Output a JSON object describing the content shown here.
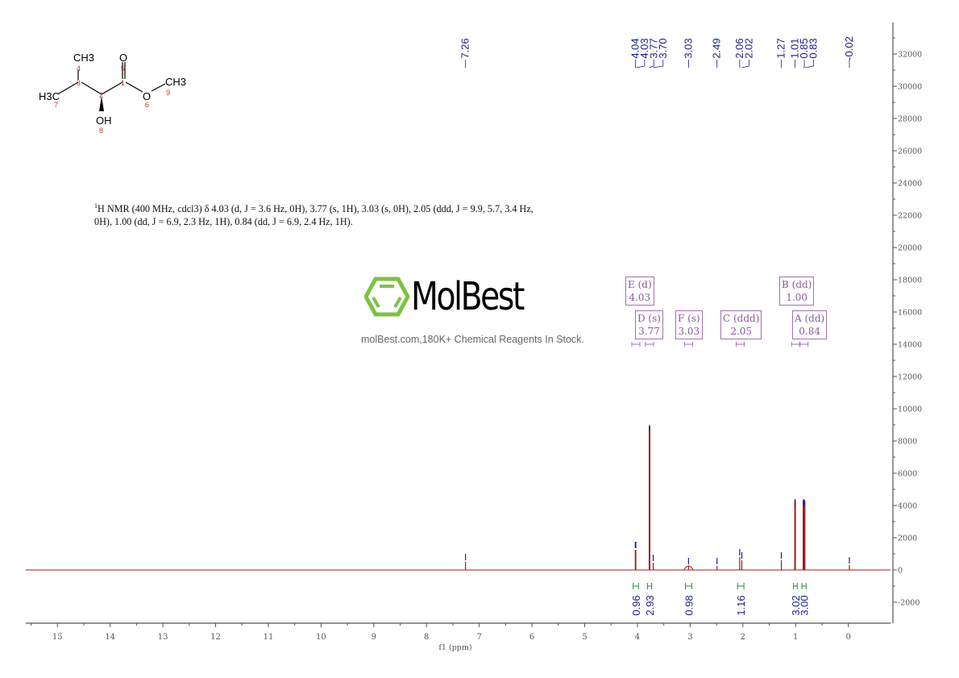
{
  "chart_data": {
    "type": "line",
    "subtype": "1H NMR spectrum",
    "xlabel": "f1 (ppm)",
    "ylabel": "",
    "xlim": [
      15.6,
      -0.8
    ],
    "ylim": [
      -3200,
      33500
    ],
    "x_reversed": true,
    "grid": false,
    "x_ticks": [
      15,
      14,
      13,
      12,
      11,
      10,
      9,
      8,
      7,
      6,
      5,
      4,
      3,
      2,
      1,
      0
    ],
    "y_ticks": [
      -2000,
      0,
      2000,
      4000,
      6000,
      8000,
      10000,
      12000,
      14000,
      16000,
      18000,
      20000,
      22000,
      24000,
      26000,
      28000,
      30000,
      32000
    ],
    "y_axis_side": "right",
    "peaks": [
      {
        "ppm": 7.26,
        "intensity": 500
      },
      {
        "ppm": 4.04,
        "intensity": 1250
      },
      {
        "ppm": 4.03,
        "intensity": 1250
      },
      {
        "ppm": 3.77,
        "intensity": 8900
      },
      {
        "ppm": 3.7,
        "intensity": 450
      },
      {
        "ppm": 3.03,
        "intensity": 250
      },
      {
        "ppm": 2.49,
        "intensity": 250
      },
      {
        "ppm": 2.06,
        "intensity": 800
      },
      {
        "ppm": 2.02,
        "intensity": 600
      },
      {
        "ppm": 1.27,
        "intensity": 600
      },
      {
        "ppm": 1.01,
        "intensity": 4300
      },
      {
        "ppm": 0.85,
        "intensity": 4300
      },
      {
        "ppm": 0.83,
        "intensity": 4250
      },
      {
        "ppm": -0.02,
        "intensity": 300
      }
    ],
    "peak_labels": [
      "7.26",
      "4.04",
      "4.03",
      "3.77",
      "3.70",
      "3.03",
      "2.49",
      "2.06",
      "2.02",
      "1.27",
      "1.01",
      "0.85",
      "0.83",
      "-0.02"
    ],
    "integrals": [
      {
        "from": 4.08,
        "to": 3.98,
        "value": "0.96"
      },
      {
        "from": 3.81,
        "to": 3.73,
        "value": "2.93"
      },
      {
        "from": 3.09,
        "to": 2.97,
        "value": "0.98"
      },
      {
        "from": 2.1,
        "to": 1.98,
        "value": "1.16"
      },
      {
        "from": 1.04,
        "to": 0.97,
        "value": "3.02"
      },
      {
        "from": 0.88,
        "to": 0.8,
        "value": "3.00"
      }
    ],
    "multiplets": [
      {
        "label": "E (d)",
        "shift": "4.03"
      },
      {
        "label": "D (s)",
        "shift": "3.77"
      },
      {
        "label": "F (s)",
        "shift": "3.03"
      },
      {
        "label": "C (ddd)",
        "shift": "2.05"
      },
      {
        "label": "B (dd)",
        "shift": "1.00"
      },
      {
        "label": "A (dd)",
        "shift": "0.84"
      }
    ],
    "colors": {
      "spectrum": "#a01818",
      "peak_marker": "#1a1aa0",
      "labels": "#1c1c8c",
      "integral": "#2a8a2a",
      "multiplet": "#a070b0",
      "axis": "#555555"
    }
  },
  "structure": {
    "atoms": {
      "ch3_top": "CH3",
      "o_carbonyl": "O",
      "h3c_left": "H3C",
      "o_ester": "O",
      "ch3_right": "CH3",
      "oh": "OH"
    },
    "numbers": [
      "1",
      "2",
      "3",
      "4",
      "5",
      "6",
      "7",
      "8",
      "9"
    ]
  },
  "description": {
    "nucleus_sup": "1",
    "text": "H NMR (400 MHz, cdcl3) δ 4.03 (d, J = 3.6 Hz, 0H), 3.77 (s, 1H), 3.03 (s, 0H), 2.05 (ddd, J = 9.9, 5.7, 3.4 Hz, 0H), 1.00 (dd, J = 6.9, 2.3 Hz, 1H), 0.84 (dd, J = 6.9, 2.4 Hz, 1H)."
  },
  "watermark": {
    "brand": "MolBest",
    "tagline": "molBest.com,180K+ Chemical Reagents In Stock.",
    "brand_color": "#7cc243"
  }
}
